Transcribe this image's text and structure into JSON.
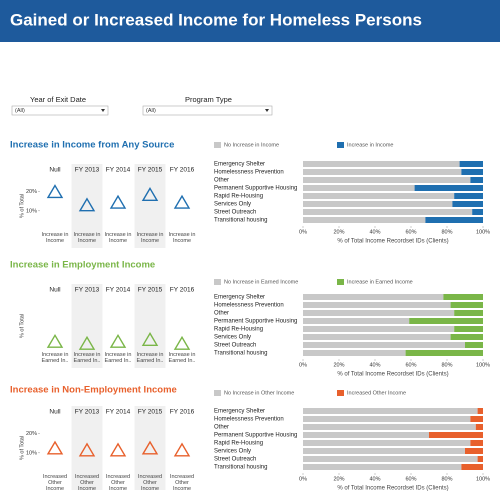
{
  "header": {
    "title": "Gained or Increased Income for Homeless Persons"
  },
  "filters": [
    {
      "label": "Year of Exit Date",
      "value": "(All)"
    },
    {
      "label": "Program Type",
      "value": "(All)"
    }
  ],
  "chart_data": [
    {
      "type": "point",
      "title": "Increase in Income from Any Source",
      "color": "#1f6fb0",
      "categories": [
        "Null",
        "FY 2013",
        "FY 2014",
        "FY 2015",
        "FY 2016"
      ],
      "values": [
        19.5,
        12.6,
        14,
        18,
        14
      ],
      "x_label": "Increase in Income",
      "ylabel": "% of Total",
      "ylim": [
        0,
        25
      ],
      "yticks": [
        {
          "value": 10,
          "label": "10%"
        },
        {
          "value": 20,
          "label": "20%"
        }
      ]
    },
    {
      "type": "hbar",
      "stacked": true,
      "color": "#1f6fb0",
      "categories": [
        "Emergency Shelter",
        "Homelessness Prevention",
        "Other",
        "Permanent Supportive Housing",
        "Rapid Re-Housing",
        "Services Only",
        "Street Outreach",
        "Transitional housing"
      ],
      "series": [
        {
          "name": "No Increase in Income",
          "color": "#c8c8c8",
          "values": [
            87,
            88,
            93,
            62,
            84,
            83,
            94,
            68
          ]
        },
        {
          "name": "Increase in Income",
          "color": "#1f6fb0",
          "values": [
            13,
            12,
            7,
            38,
            16,
            17,
            6,
            32
          ]
        }
      ],
      "xlim": [
        0,
        100
      ],
      "xticks": [
        {
          "value": 0,
          "label": "0%"
        },
        {
          "value": 20,
          "label": "20%"
        },
        {
          "value": 40,
          "label": "40%"
        },
        {
          "value": 60,
          "label": "60%"
        },
        {
          "value": 80,
          "label": "80%"
        },
        {
          "value": 100,
          "label": "100%"
        }
      ],
      "xlabel": "% of Total Income Recordset IDs (Clients)"
    },
    {
      "type": "point",
      "title": "Increase in Employment Income",
      "color": "#7ab648",
      "categories": [
        "Null",
        "FY 2013",
        "FY 2014",
        "FY 2015",
        "FY 2016"
      ],
      "values": [
        4,
        3,
        4,
        5,
        3
      ],
      "x_label": "Increase in Earned In..",
      "ylabel": "% of Total",
      "ylim": [
        0,
        25
      ],
      "yticks": []
    },
    {
      "type": "hbar",
      "stacked": true,
      "color": "#7ab648",
      "categories": [
        "Emergency Shelter",
        "Homelessness Prevention",
        "Other",
        "Permanent Supportive Housing",
        "Rapid Re-Housing",
        "Services Only",
        "Street Outreach",
        "Transitional housing"
      ],
      "series": [
        {
          "name": "No Increase in Earned Income",
          "color": "#c8c8c8",
          "values": [
            78,
            82,
            84,
            59,
            84,
            82,
            90,
            57
          ]
        },
        {
          "name": "Increase in Earned Income",
          "color": "#7ab648",
          "values": [
            22,
            18,
            16,
            41,
            16,
            18,
            10,
            43
          ]
        }
      ],
      "xlim": [
        0,
        100
      ],
      "xticks": [
        {
          "value": 0,
          "label": "0%"
        },
        {
          "value": 20,
          "label": "20%"
        },
        {
          "value": 40,
          "label": "40%"
        },
        {
          "value": 60,
          "label": "60%"
        },
        {
          "value": 80,
          "label": "80%"
        },
        {
          "value": 100,
          "label": "100%"
        }
      ],
      "xlabel": "% of Total Income Recordset IDs (Clients)"
    },
    {
      "type": "point",
      "title": "Increase in Non-Employment Income",
      "color": "#e8602c",
      "categories": [
        "Null",
        "FY 2013",
        "FY 2014",
        "FY 2015",
        "FY 2016"
      ],
      "values": [
        12,
        11,
        11,
        12,
        11
      ],
      "x_label": "Increased Other Income",
      "ylabel": "% of Total",
      "ylim": [
        0,
        25
      ],
      "yticks": [
        {
          "value": 10,
          "label": "10%"
        },
        {
          "value": 20,
          "label": "20%"
        }
      ]
    },
    {
      "type": "hbar",
      "stacked": true,
      "color": "#e8602c",
      "categories": [
        "Emergency Shelter",
        "Homelessness Prevention",
        "Other",
        "Permanent Supportive Housing",
        "Rapid Re-Housing",
        "Services Only",
        "Street Outreach",
        "Transitional housing"
      ],
      "series": [
        {
          "name": "No Increase in Other Income",
          "color": "#c8c8c8",
          "values": [
            97,
            93,
            96,
            70,
            93,
            90,
            97,
            88
          ]
        },
        {
          "name": "Increased Other Income",
          "color": "#e8602c",
          "values": [
            3,
            7,
            4,
            30,
            7,
            10,
            3,
            12
          ]
        }
      ],
      "xlim": [
        0,
        100
      ],
      "xticks": [
        {
          "value": 0,
          "label": "0%"
        },
        {
          "value": 20,
          "label": "20%"
        },
        {
          "value": 40,
          "label": "40%"
        },
        {
          "value": 60,
          "label": "60%"
        },
        {
          "value": 80,
          "label": "80%"
        },
        {
          "value": 100,
          "label": "100%"
        }
      ],
      "xlabel": "% of Total Income Recordset IDs (Clients)"
    }
  ]
}
